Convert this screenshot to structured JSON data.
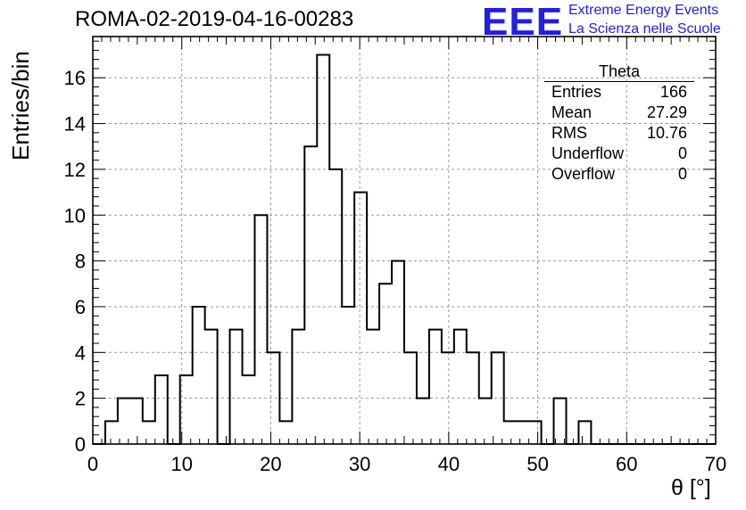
{
  "header": {
    "title": "ROMA-02-2019-04-16-00283",
    "logo_text": "EEE",
    "logo_line1": "Extreme Energy Events",
    "logo_line2": "La Scienza nelle Scuole"
  },
  "stats_box": {
    "title": "Theta",
    "rows": [
      {
        "label": "Entries",
        "value": "166"
      },
      {
        "label": "Mean",
        "value": "27.29"
      },
      {
        "label": "RMS",
        "value": "10.76"
      },
      {
        "label": "Underflow",
        "value": "0"
      },
      {
        "label": "Overflow",
        "value": "0"
      }
    ]
  },
  "chart_data": {
    "type": "bar",
    "style": "step-histogram",
    "title": "ROMA-02-2019-04-16-00283",
    "xlabel": "θ [°]",
    "ylabel": "Entries/bin",
    "xlim": [
      0,
      70
    ],
    "ylim": [
      0,
      17.8
    ],
    "bin_width": 1.4,
    "x_ticks": [
      0,
      10,
      20,
      30,
      40,
      50,
      60,
      70
    ],
    "y_ticks": [
      0,
      2,
      4,
      6,
      8,
      10,
      12,
      14,
      16
    ],
    "grid": true,
    "bin_edges": [
      0,
      1.4,
      2.8,
      4.2,
      5.6,
      7.0,
      8.4,
      9.8,
      11.2,
      12.6,
      14.0,
      15.4,
      16.8,
      18.2,
      19.6,
      21.0,
      22.4,
      23.8,
      25.2,
      26.6,
      28.0,
      29.4,
      30.8,
      32.2,
      33.6,
      35.0,
      36.4,
      37.8,
      39.2,
      40.6,
      42.0,
      43.4,
      44.8,
      46.2,
      47.6,
      49.0,
      50.4,
      51.8,
      53.2,
      54.6,
      56.0,
      57.4,
      58.8,
      60.2,
      61.6,
      63.0,
      64.4,
      65.8,
      67.2,
      68.6,
      70.0
    ],
    "values": [
      0,
      1,
      2,
      2,
      1,
      3,
      0,
      3,
      6,
      5,
      0,
      5,
      3,
      10,
      4,
      1,
      5,
      13,
      17,
      12,
      6,
      11,
      5,
      7,
      8,
      4,
      2,
      5,
      4,
      5,
      4,
      2,
      4,
      1,
      1,
      1,
      0,
      2,
      0,
      1,
      0,
      0,
      0,
      0,
      0,
      0,
      0,
      0,
      0,
      0
    ]
  }
}
